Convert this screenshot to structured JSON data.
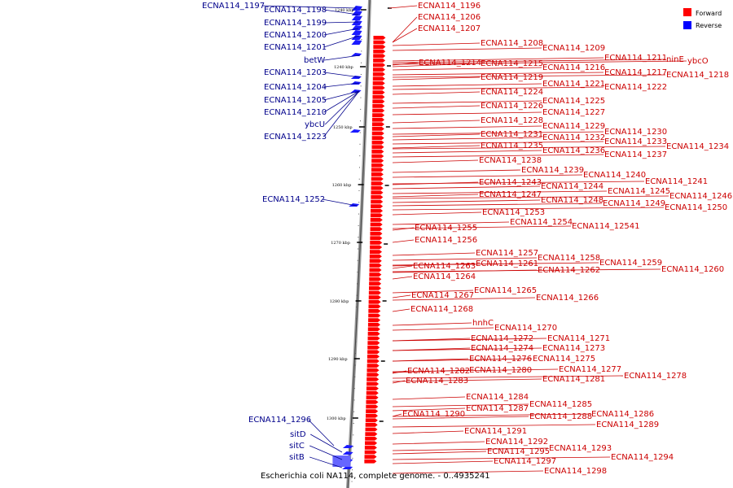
{
  "caption": "Escherichia coli NA114, complete genome. - 0..4935241",
  "legend": {
    "forward_label": "Forward",
    "reverse_label": "Reverse",
    "forward_color": "#ff0000",
    "reverse_color": "#0000ff"
  },
  "ticks": [
    "1240 kbp",
    "1250 kbp",
    "1260 kbp",
    "1270 kbp",
    "1280 kbp",
    "1290 kbp",
    "1300 kbp"
  ],
  "reverse_genes": [
    "ECNA114_1197",
    "ECNA114_1198",
    "ECNA114_1199",
    "ECNA114_1200",
    "ECNA114_1201",
    "betW",
    "ECNA114_1203",
    "ECNA114_1204",
    "ECNA114_1205",
    "ECNA114_1210",
    "ybcU",
    "ECNA114_1223",
    "ECNA114_1252",
    "ECNA114_1296",
    "sitD",
    "sitC",
    "sitB"
  ],
  "forward_genes": [
    "ECNA114_1196",
    "ECNA114_1206",
    "ECNA114_1207",
    "ECNA114_1208",
    "ECNA114_1209",
    "ECNA114_1211",
    "ninE",
    "ybcO",
    "ECNA114_1214",
    "ECNA114_1215",
    "ECNA114_1216",
    "ECNA114_1217",
    "ECNA114_1218",
    "ECNA114_1219",
    "ECNA114_1221",
    "ECNA114_1222",
    "ECNA114_1224",
    "ECNA114_1225",
    "ECNA114_1226",
    "ECNA114_1227",
    "ECNA114_1228",
    "ECNA114_1229",
    "ECNA114_1230",
    "ECNA114_1231",
    "ECNA114_1232",
    "ECNA114_1233",
    "ECNA114_1235",
    "ECNA114_1234",
    "ECNA114_1236",
    "ECNA114_1237",
    "ECNA114_1238",
    "ECNA114_1239",
    "ECNA114_1240",
    "ECNA114_1241",
    "ECNA114_1243",
    "ECNA114_1244",
    "ECNA114_1245",
    "ECNA114_1246",
    "ECNA114_1247",
    "ECNA114_1248",
    "ECNA114_1249",
    "ECNA114_1250",
    "ECNA114_1253",
    "ECNA114_1254",
    "ECNA114_12541",
    "ECNA114_1255",
    "ECNA114_1256",
    "ECNA114_1257",
    "ECNA114_1258",
    "ECNA114_1259",
    "ECNA114_1261",
    "ECNA114_1263",
    "ECNA114_1262",
    "ECNA114_1260",
    "ECNA114_1264",
    "ECNA114_1265",
    "ECNA114_1267",
    "ECNA114_1266",
    "ECNA114_1268",
    "hnhC",
    "ECNA114_1270",
    "ECNA114_1272",
    "ECNA114_1271",
    "ECNA114_1274",
    "ECNA114_1273",
    "ECNA114_1276",
    "ECNA114_1275",
    "ECNA114_1277",
    "ECNA114_1282",
    "ECNA114_1280",
    "ECNA114_1281",
    "ECNA114_1278",
    "ECNA114_1283",
    "ECNA114_1284",
    "ECNA114_1285",
    "ECNA114_1287",
    "ECNA114_1286",
    "ECNA114_1290",
    "ECNA114_1288",
    "ECNA114_1289",
    "ECNA114_1291",
    "ECNA114_1292",
    "ECNA114_1293",
    "ECNA114_1295",
    "ECNA114_1294",
    "ECNA114_1297",
    "ECNA114_1298"
  ]
}
